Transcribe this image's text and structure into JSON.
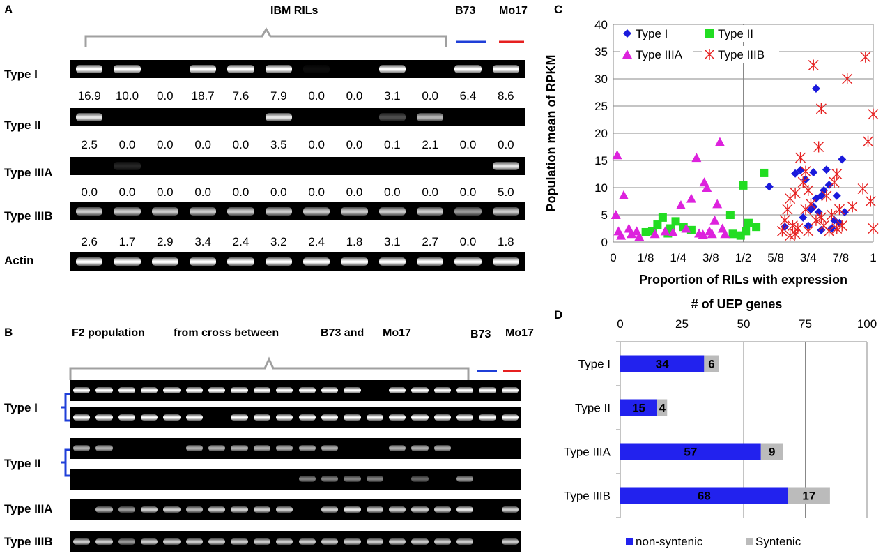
{
  "panel_a": {
    "letter": "A",
    "title": "IBM RILs",
    "b73": "B73",
    "mo17": "Mo17",
    "b73_color": "#1f3fd8",
    "mo17_color": "#e62020",
    "rows": [
      {
        "label": "Type I",
        "values": [
          "16.9",
          "10.0",
          "0.0",
          "18.7",
          "7.6",
          "7.9",
          "0.0",
          "0.0",
          "3.1",
          "0.0",
          "6.4",
          "8.6"
        ],
        "bands": [
          1,
          1,
          0,
          1,
          1,
          1,
          0.05,
          0,
          1,
          0,
          1,
          1
        ]
      },
      {
        "label": "Type II",
        "values": [
          "2.5",
          "0.0",
          "0.0",
          "0.0",
          "0.0",
          "3.5",
          "0.0",
          "0.0",
          "0.1",
          "2.1",
          "0.0",
          "0.0"
        ],
        "bands": [
          0.9,
          0,
          0,
          0,
          0,
          0.9,
          0,
          0,
          0.3,
          0.7,
          0,
          0
        ]
      },
      {
        "label": "Type IIIA",
        "values": [
          "0.0",
          "0.0",
          "0.0",
          "0.0",
          "0.0",
          "0.0",
          "0.0",
          "0.0",
          "0.0",
          "0.0",
          "0.0",
          "5.0"
        ],
        "bands": [
          0,
          0.15,
          0,
          0,
          0,
          0,
          0,
          0,
          0,
          0,
          0,
          0.9
        ]
      },
      {
        "label": "Type IIIB",
        "values": [
          "2.6",
          "1.7",
          "2.9",
          "3.4",
          "2.4",
          "3.2",
          "2.4",
          "1.8",
          "3.1",
          "2.7",
          "0.0",
          "1.8"
        ],
        "bands": [
          0.8,
          0.8,
          0.8,
          0.8,
          0.8,
          0.8,
          0.8,
          0.8,
          0.8,
          0.8,
          0.6,
          0.8
        ]
      },
      {
        "label": "Actin",
        "values": [],
        "bands": [
          1,
          1,
          1,
          1,
          1,
          1,
          1,
          1,
          1,
          1,
          1,
          1
        ]
      }
    ]
  },
  "panel_b": {
    "letter": "B",
    "title_parts": [
      "F2 population",
      "from cross between",
      "B73 and",
      "Mo17"
    ],
    "b73": "B73",
    "mo17": "Mo17",
    "row_labels": [
      "Type I",
      "Type II",
      "Type IIIA",
      "Type IIIB"
    ],
    "bracket_color": "#1f3fd8",
    "strips": [
      [
        1,
        1,
        1,
        1,
        1,
        1,
        1,
        1,
        1,
        1,
        1,
        1,
        1,
        0,
        1,
        1,
        1,
        1,
        1,
        1
      ],
      [
        1,
        1,
        1,
        1,
        1,
        1,
        0,
        1,
        1,
        1,
        1,
        1,
        1,
        1,
        1,
        1,
        1,
        1,
        1,
        1
      ],
      [
        0.7,
        0.7,
        0,
        0,
        0,
        0.7,
        0.7,
        0.7,
        0.7,
        0.7,
        0.7,
        0.7,
        0,
        0,
        0.7,
        0.7,
        0.7,
        0,
        0,
        0
      ],
      [
        0,
        0,
        0,
        0,
        0,
        0,
        0,
        0,
        0,
        0,
        0.5,
        0.5,
        0.5,
        0.5,
        0,
        0.4,
        0,
        0.6,
        0,
        0
      ],
      [
        0,
        0.7,
        0.6,
        0.8,
        0.8,
        0.7,
        0.8,
        0.8,
        0.8,
        0.8,
        0,
        0.8,
        0.9,
        0.8,
        0.8,
        0.8,
        0.8,
        0.9,
        0,
        0.8
      ],
      [
        0.8,
        0.8,
        0.6,
        0.8,
        0.8,
        0.8,
        0.8,
        0.8,
        0.8,
        0.8,
        0.8,
        0.8,
        0.8,
        0.8,
        0.8,
        0.8,
        0.8,
        0.8,
        0,
        0.8
      ]
    ]
  },
  "chart_data": [
    {
      "panel": "C",
      "type": "scatter",
      "xlabel": "Proportion of RILs with expression",
      "ylabel": "Population mean of RPKM",
      "xlim": [
        0,
        1
      ],
      "ylim": [
        0,
        40
      ],
      "x_ticks": [
        "0",
        "1/8",
        "1/4",
        "3/8",
        "1/2",
        "5/8",
        "3/4",
        "7/8",
        "1"
      ],
      "y_ticks": [
        "0",
        "5",
        "10",
        "15",
        "20",
        "25",
        "30",
        "35",
        "40"
      ],
      "legend_placement": "top-left",
      "grid": true,
      "series": [
        {
          "name": "Type I",
          "marker": "diamond",
          "color": "#1a1adc",
          "points": [
            [
              0.6,
              10.2
            ],
            [
              0.66,
              2.8
            ],
            [
              0.7,
              12.6
            ],
            [
              0.72,
              13.2
            ],
            [
              0.74,
              11.5
            ],
            [
              0.75,
              3
            ],
            [
              0.76,
              6
            ],
            [
              0.77,
              12.8
            ],
            [
              0.78,
              28.2
            ],
            [
              0.78,
              8
            ],
            [
              0.79,
              5.5
            ],
            [
              0.8,
              8.5
            ],
            [
              0.81,
              9.5
            ],
            [
              0.82,
              13.3
            ],
            [
              0.83,
              10.5
            ],
            [
              0.84,
              2.5
            ],
            [
              0.85,
              4
            ],
            [
              0.86,
              8.5
            ],
            [
              0.87,
              3.5
            ],
            [
              0.88,
              15.2
            ],
            [
              0.89,
              5.5
            ],
            [
              0.73,
              4.5
            ],
            [
              0.77,
              6.5
            ],
            [
              0.8,
              2.2
            ]
          ]
        },
        {
          "name": "Type II",
          "marker": "square",
          "color": "#22dd22",
          "points": [
            [
              0.125,
              1.8
            ],
            [
              0.15,
              2
            ],
            [
              0.17,
              3.2
            ],
            [
              0.19,
              4.5
            ],
            [
              0.21,
              1.6
            ],
            [
              0.22,
              2.5
            ],
            [
              0.24,
              3.8
            ],
            [
              0.27,
              2.8
            ],
            [
              0.3,
              2.2
            ],
            [
              0.45,
              5
            ],
            [
              0.46,
              1.5
            ],
            [
              0.49,
              1.2
            ],
            [
              0.5,
              10.4
            ],
            [
              0.51,
              2
            ],
            [
              0.52,
              3.5
            ],
            [
              0.55,
              2.8
            ],
            [
              0.58,
              12.7
            ]
          ]
        },
        {
          "name": "Type IIIA",
          "marker": "triangle",
          "color": "#dd22dd",
          "points": [
            [
              0.01,
              5
            ],
            [
              0.015,
              16
            ],
            [
              0.02,
              2
            ],
            [
              0.03,
              1.2
            ],
            [
              0.04,
              8.6
            ],
            [
              0.06,
              2.5
            ],
            [
              0.07,
              1.5
            ],
            [
              0.09,
              2
            ],
            [
              0.1,
              1
            ],
            [
              0.16,
              1.5
            ],
            [
              0.2,
              2
            ],
            [
              0.23,
              1.8
            ],
            [
              0.26,
              6.8
            ],
            [
              0.28,
              2.5
            ],
            [
              0.3,
              8
            ],
            [
              0.32,
              15.5
            ],
            [
              0.33,
              1.6
            ],
            [
              0.35,
              11
            ],
            [
              0.36,
              10
            ],
            [
              0.37,
              2
            ],
            [
              0.38,
              1.5
            ],
            [
              0.39,
              4
            ],
            [
              0.4,
              7
            ],
            [
              0.41,
              18.4
            ],
            [
              0.42,
              2.5
            ],
            [
              0.43,
              1.5
            ],
            [
              0.345,
              1.4
            ]
          ]
        },
        {
          "name": "Type IIIB",
          "marker": "asterisk",
          "color": "#e62020",
          "points": [
            [
              0.65,
              2
            ],
            [
              0.66,
              4
            ],
            [
              0.67,
              6
            ],
            [
              0.68,
              8
            ],
            [
              0.69,
              3
            ],
            [
              0.7,
              9
            ],
            [
              0.71,
              2.5
            ],
            [
              0.72,
              15.5
            ],
            [
              0.73,
              11
            ],
            [
              0.74,
              6
            ],
            [
              0.75,
              2
            ],
            [
              0.76,
              7
            ],
            [
              0.77,
              32.5
            ],
            [
              0.78,
              4
            ],
            [
              0.79,
              17.5
            ],
            [
              0.8,
              24.5
            ],
            [
              0.81,
              3
            ],
            [
              0.82,
              8.5
            ],
            [
              0.83,
              2
            ],
            [
              0.84,
              5
            ],
            [
              0.85,
              11
            ],
            [
              0.86,
              2.5
            ],
            [
              0.87,
              6
            ],
            [
              0.88,
              3
            ],
            [
              0.9,
              30
            ],
            [
              0.92,
              6.5
            ],
            [
              0.96,
              9.8
            ],
            [
              0.97,
              34
            ],
            [
              0.98,
              18.5
            ],
            [
              0.99,
              7.5
            ],
            [
              1.0,
              23.5
            ],
            [
              1.0,
              2.5
            ],
            [
              0.7,
              1.5
            ],
            [
              0.75,
              9.5
            ],
            [
              0.8,
              4.5
            ],
            [
              0.68,
              1.2
            ],
            [
              0.74,
              13
            ],
            [
              0.86,
              12.5
            ]
          ]
        }
      ]
    },
    {
      "panel": "D",
      "type": "bar",
      "orientation": "horizontal",
      "stacked": true,
      "title": "# of UEP genes",
      "xlim": [
        0,
        100
      ],
      "x_ticks": [
        "0",
        "25",
        "50",
        "75",
        "100"
      ],
      "categories": [
        "Type I",
        "Type II",
        "Type IIIA",
        "Type IIIB"
      ],
      "legend_placement": "bottom",
      "series": [
        {
          "name": "non-syntenic",
          "color": "#2222ee",
          "values": [
            34,
            15,
            57,
            68
          ]
        },
        {
          "name": "Syntenic",
          "color": "#bbbbbb",
          "values": [
            6,
            4,
            9,
            17
          ]
        }
      ]
    }
  ],
  "panel_c_letter": "C",
  "panel_d_letter": "D"
}
